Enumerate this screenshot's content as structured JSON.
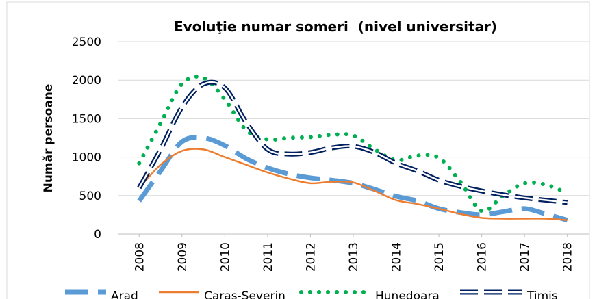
{
  "chart_data": {
    "type": "line",
    "title": "Evoluţie numar someri  (nivel universitar)",
    "y_label": "Număr persoane",
    "x": [
      2008,
      2008.5,
      2009,
      2009.5,
      2010,
      2010.5,
      2011,
      2011.5,
      2012,
      2012.5,
      2013,
      2013.5,
      2014,
      2014.5,
      2015,
      2015.5,
      2016,
      2016.5,
      2017,
      2017.5,
      2018
    ],
    "xlim": [
      2007.5,
      2018.5
    ],
    "xticks": [
      2008,
      2009,
      2010,
      2011,
      2012,
      2013,
      2014,
      2015,
      2016,
      2017,
      2018
    ],
    "ylim": [
      0,
      2500
    ],
    "yticks": [
      0,
      500,
      1000,
      1500,
      2000,
      2500
    ],
    "grid": true,
    "legend": "bottom",
    "series": [
      {
        "name": "Arad",
        "color": "#5b9bd5",
        "values": [
          430,
          820,
          1200,
          1250,
          1150,
          980,
          860,
          780,
          730,
          700,
          660,
          580,
          490,
          430,
          330,
          280,
          250,
          290,
          330,
          260,
          180
        ]
      },
      {
        "name": "Caras-Severin",
        "color": "#ed7d31",
        "values": [
          600,
          900,
          1080,
          1100,
          1000,
          900,
          800,
          720,
          660,
          680,
          670,
          560,
          440,
          390,
          330,
          260,
          210,
          200,
          200,
          200,
          180
        ]
      },
      {
        "name": "Hunedoara",
        "color": "#00b050",
        "values": [
          920,
          1440,
          1950,
          2030,
          1750,
          1350,
          1230,
          1250,
          1260,
          1290,
          1280,
          1100,
          960,
          1020,
          990,
          680,
          300,
          500,
          660,
          640,
          530
        ]
      },
      {
        "name": "Timis",
        "color": "#002060",
        "values": [
          600,
          1100,
          1650,
          1950,
          1900,
          1450,
          1100,
          1040,
          1060,
          1120,
          1140,
          1060,
          920,
          820,
          700,
          620,
          560,
          510,
          470,
          440,
          410
        ]
      }
    ]
  }
}
